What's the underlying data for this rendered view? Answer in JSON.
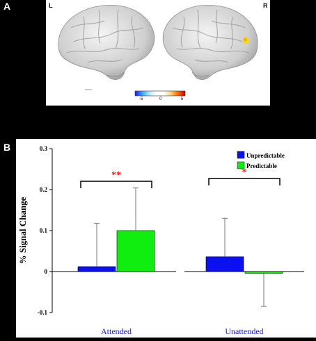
{
  "panels": {
    "a": {
      "letter": "A",
      "left_label": "L",
      "right_label": "R",
      "colorbar": {
        "min_label": "-5",
        "mid_label": "0",
        "max_label": "5",
        "colors": [
          "#1a1aff",
          "#33aaff",
          "#bfe6ff",
          "#ffffff",
          "#ffffff",
          "#ffd27a",
          "#ff6a00",
          "#cc0000"
        ]
      },
      "activation_color": "#ffd800"
    },
    "b": {
      "letter": "B"
    }
  },
  "chart_data": {
    "type": "bar",
    "categories": [
      "Attended",
      "Unattended"
    ],
    "series": [
      {
        "name": "Unpredictable",
        "color": "#0a10f0",
        "values": [
          0.012,
          0.036
        ],
        "error_upper": [
          0.118,
          0.13
        ]
      },
      {
        "name": "Predictable",
        "color": "#10ee10",
        "values": [
          0.1,
          -0.004
        ],
        "error_upper": [
          0.204,
          -0.085
        ]
      }
    ],
    "ylabel": "% Signal Change",
    "ylim": [
      -0.1,
      0.3
    ],
    "yticks": [
      -0.1,
      0,
      0.1,
      0.2,
      0.3
    ],
    "ytick_labels": [
      "-0.1",
      "0",
      "0.1",
      "0.2",
      "0.3"
    ],
    "category_label_color": "#1a1ad8",
    "legend_position": "top-right",
    "significance": [
      {
        "category": "Attended",
        "label": "**"
      },
      {
        "category": "Unattended",
        "label": "*"
      }
    ],
    "significance_color": "#ff2020"
  }
}
